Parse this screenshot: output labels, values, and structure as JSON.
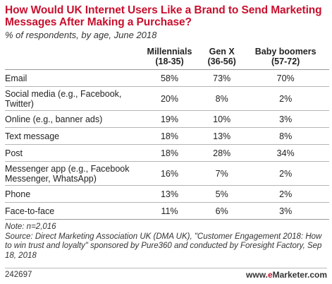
{
  "chart_data": {
    "type": "table",
    "title": "How Would UK Internet Users Like a Brand to Send Marketing Messages After Making a Purchase?",
    "subtitle": "% of respondents, by age, June 2018",
    "columns": [
      {
        "name": "Millennials",
        "range": "(18-35)"
      },
      {
        "name": "Gen X",
        "range": "(36-56)"
      },
      {
        "name": "Baby boomers",
        "range": "(57-72)"
      }
    ],
    "rows": [
      {
        "label": "Email",
        "values": [
          "58%",
          "73%",
          "70%"
        ]
      },
      {
        "label": "Social media (e.g., Facebook, Twitter)",
        "values": [
          "20%",
          "8%",
          "2%"
        ]
      },
      {
        "label": "Online (e.g., banner ads)",
        "values": [
          "19%",
          "10%",
          "3%"
        ]
      },
      {
        "label": "Text message",
        "values": [
          "18%",
          "13%",
          "8%"
        ]
      },
      {
        "label": "Post",
        "values": [
          "18%",
          "28%",
          "34%"
        ]
      },
      {
        "label": "Messenger app (e.g., Facebook Messenger, WhatsApp)",
        "values": [
          "16%",
          "7%",
          "2%"
        ]
      },
      {
        "label": "Phone",
        "values": [
          "13%",
          "5%",
          "2%"
        ]
      },
      {
        "label": "Face-to-face",
        "values": [
          "11%",
          "6%",
          "3%"
        ]
      }
    ],
    "note": "Note: n=2,016",
    "source": "Source: Direct Marketing Association UK (DMA UK), \"Customer Engagement 2018: How to win trust and loyalty\" sponsored by Pure360 and conducted by Foresight Factory, Sep 18, 2018"
  },
  "footer": {
    "id": "242697",
    "brand_prefix": "www.",
    "brand_e": "e",
    "brand_rest": "Marketer.com"
  },
  "colors": {
    "title": "#c8102e",
    "text": "#222222",
    "rule": "#b5b5b5"
  }
}
